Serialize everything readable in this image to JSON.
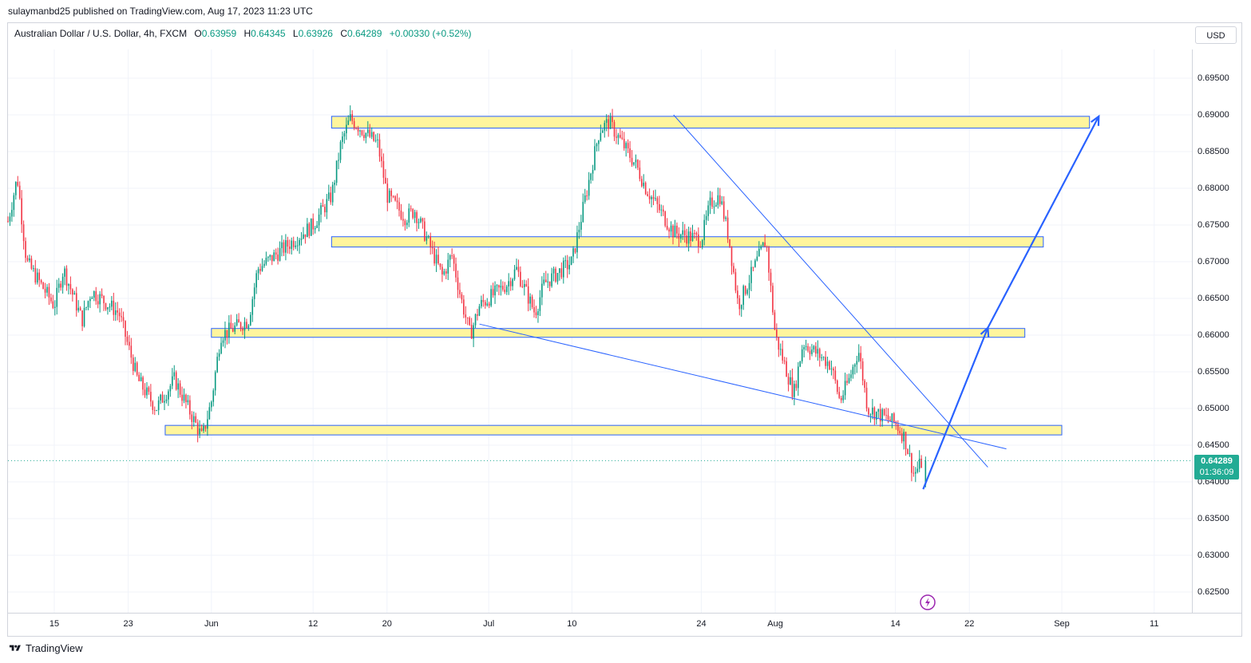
{
  "header": {
    "published": "sulaymanbd25 published on TradingView.com, Aug 17, 2023 11:23 UTC"
  },
  "legend": {
    "symbol": "Australian Dollar / U.S. Dollar, 4h, FXCM",
    "o_key": "O",
    "o_val": "0.63959",
    "h_key": "H",
    "h_val": "0.64345",
    "l_key": "L",
    "l_val": "0.63926",
    "c_key": "C",
    "c_val": "0.64289",
    "change": "+0.00330 (+0.52%)"
  },
  "currency_button": "USD",
  "last_price": {
    "price": "0.64289",
    "countdown": "01:36:09"
  },
  "footer": {
    "brand": "TradingView",
    "icon": "tradingview-logo-icon"
  },
  "colors": {
    "up": "#089981",
    "down": "#f23645",
    "zone_fill": "#fff59d",
    "zone_border": "#2962ff",
    "drawing": "#2962ff",
    "flash": "#9c27b0"
  },
  "chart_data": {
    "type": "candlestick",
    "instrument": "AUDUSD",
    "timeframe": "4h",
    "y_ticks": [
      "0.69500",
      "0.69000",
      "0.68500",
      "0.68000",
      "0.67500",
      "0.67000",
      "0.66500",
      "0.66000",
      "0.65500",
      "0.65000",
      "0.64500",
      "0.64000",
      "0.63500",
      "0.63000",
      "0.62500"
    ],
    "x_ticks": [
      "15",
      "23",
      "Jun",
      "12",
      "20",
      "Jul",
      "10",
      "24",
      "Aug",
      "14",
      "22",
      "Sep",
      "11"
    ],
    "price_path": [
      {
        "t": "2023-05-10",
        "p": 0.6755
      },
      {
        "t": "2023-05-11",
        "p": 0.6815
      },
      {
        "t": "2023-05-12",
        "p": 0.67
      },
      {
        "t": "2023-05-15",
        "p": 0.664
      },
      {
        "t": "2023-05-16",
        "p": 0.669
      },
      {
        "t": "2023-05-18",
        "p": 0.662
      },
      {
        "t": "2023-05-19",
        "p": 0.666
      },
      {
        "t": "2023-05-22",
        "p": 0.663
      },
      {
        "t": "2023-05-24",
        "p": 0.654
      },
      {
        "t": "2023-05-26",
        "p": 0.65
      },
      {
        "t": "2023-05-28",
        "p": 0.654
      },
      {
        "t": "2023-05-31",
        "p": 0.646
      },
      {
        "t": "2023-06-01",
        "p": 0.651
      },
      {
        "t": "2023-06-02",
        "p": 0.66
      },
      {
        "t": "2023-06-05",
        "p": 0.662
      },
      {
        "t": "2023-06-06",
        "p": 0.669
      },
      {
        "t": "2023-06-09",
        "p": 0.672
      },
      {
        "t": "2023-06-12",
        "p": 0.675
      },
      {
        "t": "2023-06-14",
        "p": 0.679
      },
      {
        "t": "2023-06-15",
        "p": 0.686
      },
      {
        "t": "2023-06-16",
        "p": 0.6895
      },
      {
        "t": "2023-06-19",
        "p": 0.686
      },
      {
        "t": "2023-06-20",
        "p": 0.679
      },
      {
        "t": "2023-06-22",
        "p": 0.676
      },
      {
        "t": "2023-06-23",
        "p": 0.677
      },
      {
        "t": "2023-06-26",
        "p": 0.668
      },
      {
        "t": "2023-06-27",
        "p": 0.671
      },
      {
        "t": "2023-06-28",
        "p": 0.665
      },
      {
        "t": "2023-06-29",
        "p": 0.66
      },
      {
        "t": "2023-06-30",
        "p": 0.664
      },
      {
        "t": "2023-07-03",
        "p": 0.667
      },
      {
        "t": "2023-07-04",
        "p": 0.669
      },
      {
        "t": "2023-07-06",
        "p": 0.663
      },
      {
        "t": "2023-07-07",
        "p": 0.667
      },
      {
        "t": "2023-07-10",
        "p": 0.67
      },
      {
        "t": "2023-07-11",
        "p": 0.676
      },
      {
        "t": "2023-07-13",
        "p": 0.688
      },
      {
        "t": "2023-07-14",
        "p": 0.689
      },
      {
        "t": "2023-07-17",
        "p": 0.683
      },
      {
        "t": "2023-07-18",
        "p": 0.68
      },
      {
        "t": "2023-07-20",
        "p": 0.676
      },
      {
        "t": "2023-07-21",
        "p": 0.674
      },
      {
        "t": "2023-07-24",
        "p": 0.673
      },
      {
        "t": "2023-07-25",
        "p": 0.678
      },
      {
        "t": "2023-07-26",
        "p": 0.679
      },
      {
        "t": "2023-07-27",
        "p": 0.673
      },
      {
        "t": "2023-07-28",
        "p": 0.664
      },
      {
        "t": "2023-07-31",
        "p": 0.673
      },
      {
        "t": "2023-08-01",
        "p": 0.66
      },
      {
        "t": "2023-08-02",
        "p": 0.656
      },
      {
        "t": "2023-08-03",
        "p": 0.652
      },
      {
        "t": "2023-08-04",
        "p": 0.659
      },
      {
        "t": "2023-08-07",
        "p": 0.656
      },
      {
        "t": "2023-08-08",
        "p": 0.651
      },
      {
        "t": "2023-08-09",
        "p": 0.654
      },
      {
        "t": "2023-08-10",
        "p": 0.658
      },
      {
        "t": "2023-08-11",
        "p": 0.65
      },
      {
        "t": "2023-08-14",
        "p": 0.648
      },
      {
        "t": "2023-08-15",
        "p": 0.646
      },
      {
        "t": "2023-08-16",
        "p": 0.641
      },
      {
        "t": "2023-08-17",
        "p": 0.643
      }
    ],
    "zones": [
      {
        "from": "2023-06-14",
        "to": "2023-09-04",
        "low": 0.6882,
        "high": 0.6898
      },
      {
        "from": "2023-06-14",
        "to": "2023-08-30",
        "low": 0.672,
        "high": 0.6734
      },
      {
        "from": "2023-06-01",
        "to": "2023-08-28",
        "low": 0.6597,
        "high": 0.6609
      },
      {
        "from": "2023-05-27",
        "to": "2023-09-01",
        "low": 0.6464,
        "high": 0.6477
      }
    ],
    "trendlines": [
      {
        "from": {
          "t": "2023-07-21",
          "p": 0.69
        },
        "to": {
          "t": "2023-08-24",
          "p": 0.642
        }
      },
      {
        "from": {
          "t": "2023-06-30",
          "p": 0.6615
        },
        "to": {
          "t": "2023-08-26",
          "p": 0.6445
        }
      }
    ],
    "projection": [
      {
        "t": "2023-08-17",
        "p": 0.639
      },
      {
        "t": "2023-08-24",
        "p": 0.661
      },
      {
        "t": "2023-09-05",
        "p": 0.6898
      }
    ],
    "last_price": 0.64289,
    "grid": true
  }
}
